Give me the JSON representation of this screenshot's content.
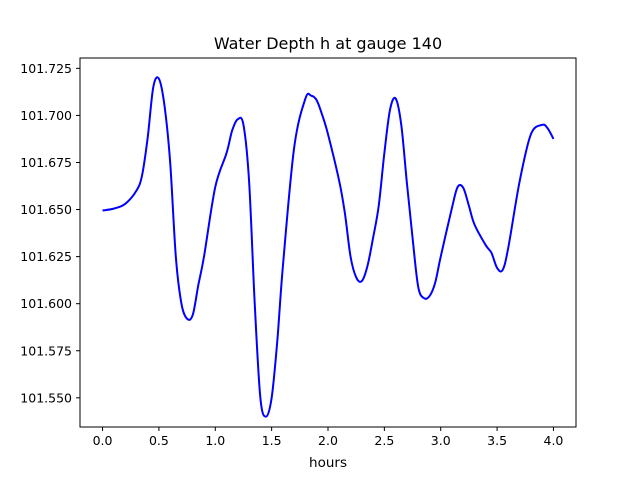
{
  "chart_data": {
    "type": "line",
    "title": "Water Depth h at gauge 140",
    "xlabel": "hours",
    "ylabel": "",
    "xlim": [
      -0.2,
      4.2
    ],
    "ylim": [
      101.5345,
      101.7305
    ],
    "xticks": [
      0.0,
      0.5,
      1.0,
      1.5,
      2.0,
      2.5,
      3.0,
      3.5,
      4.0
    ],
    "xtick_labels": [
      "0.0",
      "0.5",
      "1.0",
      "1.5",
      "2.0",
      "2.5",
      "3.0",
      "3.5",
      "4.0"
    ],
    "yticks": [
      101.55,
      101.575,
      101.6,
      101.625,
      101.65,
      101.675,
      101.7,
      101.725
    ],
    "ytick_labels": [
      "101.550",
      "101.575",
      "101.600",
      "101.625",
      "101.650",
      "101.675",
      "101.700",
      "101.725"
    ],
    "grid": false,
    "series": [
      {
        "color": "#0000ff",
        "x": [
          0.0,
          0.1,
          0.2,
          0.3,
          0.35,
          0.4,
          0.45,
          0.5,
          0.55,
          0.6,
          0.65,
          0.7,
          0.75,
          0.8,
          0.85,
          0.9,
          1.0,
          1.1,
          1.15,
          1.2,
          1.25,
          1.3,
          1.35,
          1.4,
          1.45,
          1.5,
          1.55,
          1.6,
          1.7,
          1.8,
          1.85,
          1.9,
          1.95,
          2.0,
          2.1,
          2.15,
          2.2,
          2.25,
          2.3,
          2.35,
          2.4,
          2.45,
          2.5,
          2.55,
          2.6,
          2.65,
          2.7,
          2.75,
          2.8,
          2.85,
          2.9,
          2.95,
          3.0,
          3.1,
          3.15,
          3.2,
          3.25,
          3.3,
          3.4,
          3.45,
          3.5,
          3.55,
          3.6,
          3.7,
          3.8,
          3.9,
          3.95,
          4.0
        ],
        "y": [
          101.6495,
          101.6505,
          101.653,
          101.66,
          101.668,
          101.688,
          101.715,
          101.7195,
          101.705,
          101.675,
          101.625,
          101.6,
          101.592,
          101.594,
          101.61,
          101.625,
          101.662,
          101.68,
          101.692,
          101.698,
          101.695,
          101.665,
          101.6,
          101.55,
          101.54,
          101.55,
          101.58,
          101.62,
          101.683,
          101.709,
          101.7105,
          101.708,
          101.7,
          101.69,
          101.665,
          101.648,
          101.625,
          101.614,
          101.612,
          101.62,
          101.635,
          101.652,
          101.68,
          101.703,
          101.709,
          101.695,
          101.664,
          101.635,
          101.609,
          101.603,
          101.604,
          101.611,
          101.625,
          101.651,
          101.662,
          101.6615,
          101.652,
          101.642,
          101.631,
          101.627,
          101.619,
          101.618,
          101.63,
          101.665,
          101.69,
          101.695,
          101.693,
          101.6875
        ]
      }
    ]
  }
}
